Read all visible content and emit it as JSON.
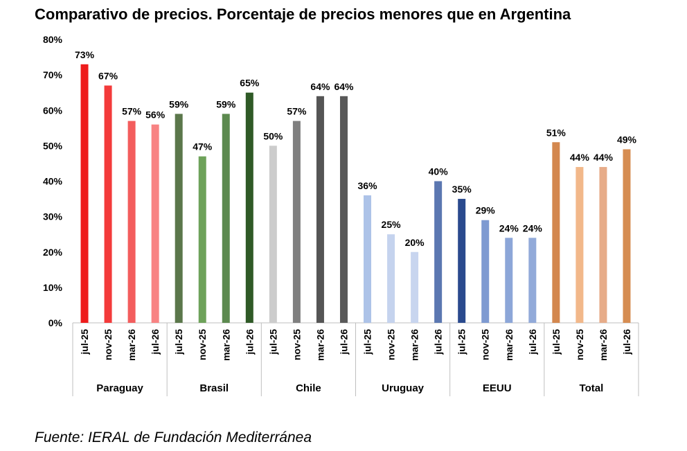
{
  "chart_data": {
    "type": "bar",
    "title": "Comparativo de precios. Porcentaje de precios menores que en Argentina",
    "source": "Fuente: IERAL de Fundación Mediterránea",
    "ylim": [
      0,
      80
    ],
    "yticks": [
      "0%",
      "10%",
      "20%",
      "30%",
      "40%",
      "50%",
      "60%",
      "70%",
      "80%"
    ],
    "legend": "none",
    "grid": false,
    "groups": [
      {
        "name": "Paraguay",
        "bars": [
          {
            "x": "jul-25",
            "value": 73,
            "label": "73%",
            "color": "#ee1c1c"
          },
          {
            "x": "nov-25",
            "value": 67,
            "label": "67%",
            "color": "#f33a3a"
          },
          {
            "x": "mar-26",
            "value": 57,
            "label": "57%",
            "color": "#f35d5d"
          },
          {
            "x": "jul-26",
            "value": 56,
            "label": "56%",
            "color": "#f88383"
          }
        ]
      },
      {
        "name": "Brasil",
        "bars": [
          {
            "x": "jul-25",
            "value": 59,
            "label": "59%",
            "color": "#5b774b"
          },
          {
            "x": "nov-25",
            "value": 47,
            "label": "47%",
            "color": "#6ea25a"
          },
          {
            "x": "mar-26",
            "value": 59,
            "label": "59%",
            "color": "#5c8a4f"
          },
          {
            "x": "jul-26",
            "value": 65,
            "label": "65%",
            "color": "#2f5a26"
          }
        ]
      },
      {
        "name": "Chile",
        "bars": [
          {
            "x": "jul-25",
            "value": 50,
            "label": "50%",
            "color": "#cccccc"
          },
          {
            "x": "nov-25",
            "value": 57,
            "label": "57%",
            "color": "#7f7f7f"
          },
          {
            "x": "mar-26",
            "value": 64,
            "label": "64%",
            "color": "#555555"
          },
          {
            "x": "jul-26",
            "value": 64,
            "label": "64%",
            "color": "#595959"
          }
        ]
      },
      {
        "name": "Uruguay",
        "bars": [
          {
            "x": "jul-25",
            "value": 36,
            "label": "36%",
            "color": "#adc3e8"
          },
          {
            "x": "nov-25",
            "value": 25,
            "label": "25%",
            "color": "#c5d3ee"
          },
          {
            "x": "mar-26",
            "value": 20,
            "label": "20%",
            "color": "#c8d5ef"
          },
          {
            "x": "jul-26",
            "value": 40,
            "label": "40%",
            "color": "#5b77b1"
          }
        ]
      },
      {
        "name": "EEUU",
        "bars": [
          {
            "x": "jul-25",
            "value": 35,
            "label": "35%",
            "color": "#2a4a8e"
          },
          {
            "x": "nov-25",
            "value": 29,
            "label": "29%",
            "color": "#7e9ad1"
          },
          {
            "x": "mar-26",
            "value": 24,
            "label": "24%",
            "color": "#8ca6d8"
          },
          {
            "x": "jul-26",
            "value": 24,
            "label": "24%",
            "color": "#92aad9"
          }
        ]
      },
      {
        "name": "Total",
        "bars": [
          {
            "x": "jul-25",
            "value": 51,
            "label": "51%",
            "color": "#d3874e"
          },
          {
            "x": "nov-25",
            "value": 44,
            "label": "44%",
            "color": "#f2b88a"
          },
          {
            "x": "mar-26",
            "value": 44,
            "label": "44%",
            "color": "#e7ac89"
          },
          {
            "x": "jul-26",
            "value": 49,
            "label": "49%",
            "color": "#d68d52"
          }
        ]
      }
    ]
  }
}
